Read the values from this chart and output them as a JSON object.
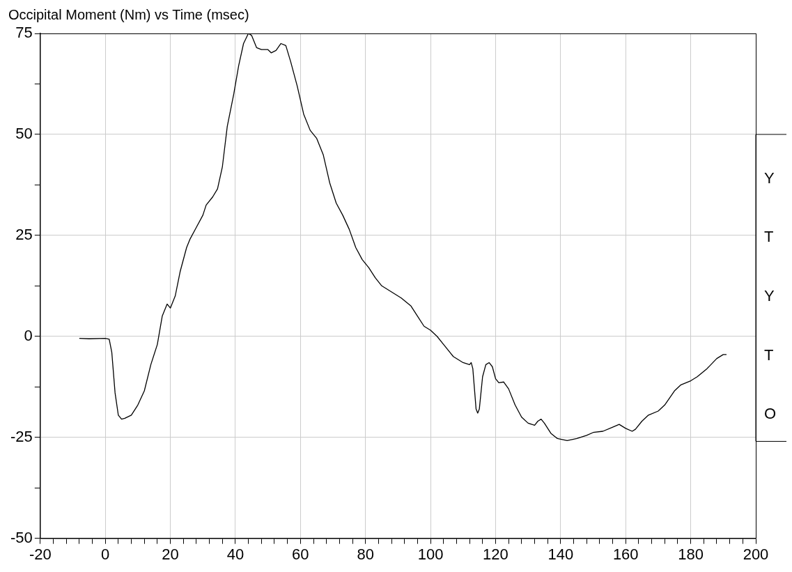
{
  "chart_data": {
    "type": "line",
    "title": "Occipital Moment (Nm) vs Time (msec)",
    "x": [
      -8,
      -5,
      0,
      1.2,
      2,
      3,
      4,
      5,
      6,
      8,
      10,
      12,
      14,
      16,
      17.5,
      19,
      20,
      21.5,
      23,
      25,
      26,
      28,
      30,
      31,
      33,
      34.5,
      36,
      37.5,
      39.5,
      41,
      42.5,
      44,
      45,
      46.5,
      48,
      50,
      51,
      52.5,
      54,
      55.5,
      57,
      59,
      61,
      63,
      65,
      67,
      69,
      71,
      73,
      75,
      77,
      79,
      81,
      83,
      85,
      88,
      91,
      94,
      96,
      98,
      100,
      102,
      104,
      107,
      110,
      112,
      112.5,
      113,
      113.5,
      114,
      114.5,
      115,
      116,
      117,
      118,
      119,
      120,
      121,
      122.5,
      124,
      126,
      128,
      130,
      132,
      133,
      134,
      135,
      137,
      139,
      142,
      145,
      148,
      150,
      153,
      156,
      158,
      160,
      162,
      163,
      165,
      167,
      170,
      172,
      175,
      177,
      180,
      182,
      185,
      188,
      190,
      191
    ],
    "series": [
      {
        "color": "#000000",
        "values": [
          -0.5,
          -0.6,
          -0.5,
          -0.7,
          -4,
          -14,
          -19.5,
          -20.5,
          -20.3,
          -19.5,
          -17,
          -13.5,
          -7,
          -2,
          5,
          8,
          7,
          10,
          16,
          22,
          24,
          27,
          30,
          32.5,
          34.5,
          36.5,
          42,
          52,
          60,
          67,
          72.5,
          75,
          74.5,
          71.5,
          71,
          71,
          70.2,
          70.8,
          72.5,
          72,
          68,
          62,
          55,
          51,
          49,
          45,
          38,
          33,
          30,
          26.5,
          22,
          19,
          17,
          14.5,
          12.5,
          11,
          9.5,
          7.5,
          5,
          2.5,
          1.5,
          0,
          -2,
          -5,
          -6.5,
          -7,
          -6.5,
          -8,
          -13,
          -18,
          -19,
          -18,
          -10,
          -7,
          -6.5,
          -7.5,
          -10.5,
          -11.5,
          -11.3,
          -13,
          -17,
          -20,
          -21.5,
          -22,
          -21,
          -20.5,
          -21.5,
          -24,
          -25.3,
          -25.8,
          -25.3,
          -24.5,
          -23.8,
          -23.5,
          -22.5,
          -21.8,
          -22.8,
          -23.5,
          -23,
          -21,
          -19.5,
          -18.5,
          -17,
          -13.5,
          -12,
          -11,
          -10,
          -8,
          -5.5,
          -4.5,
          -4.5
        ]
      }
    ],
    "xlim": [
      -20,
      200
    ],
    "xticks": [
      -20,
      {
        "value": -16,
        "label": null
      },
      {
        "value": -12,
        "label": null
      },
      {
        "value": -8,
        "label": null
      },
      {
        "value": -4,
        "label": null
      },
      0,
      {
        "value": 4,
        "label": null
      },
      {
        "value": 8,
        "label": null
      },
      {
        "value": 12,
        "label": null
      },
      {
        "value": 16,
        "label": null
      },
      20,
      {
        "value": 24,
        "label": null
      },
      {
        "value": 28,
        "label": null
      },
      {
        "value": 32,
        "label": null
      },
      {
        "value": 36,
        "label": null
      },
      40,
      {
        "value": 44,
        "label": null
      },
      {
        "value": 48,
        "label": null
      },
      {
        "value": 52,
        "label": null
      },
      {
        "value": 56,
        "label": null
      },
      60,
      {
        "value": 64,
        "label": null
      },
      {
        "value": 68,
        "label": null
      },
      {
        "value": 72,
        "label": null
      },
      {
        "value": 76,
        "label": null
      },
      80,
      {
        "value": 84,
        "label": null
      },
      {
        "value": 88,
        "label": null
      },
      {
        "value": 92,
        "label": null
      },
      {
        "value": 96,
        "label": null
      },
      100,
      {
        "value": 104,
        "label": null
      },
      {
        "value": 108,
        "label": null
      },
      {
        "value": 112,
        "label": null
      },
      {
        "value": 116,
        "label": null
      },
      120,
      {
        "value": 124,
        "label": null
      },
      {
        "value": 128,
        "label": null
      },
      {
        "value": 132,
        "label": null
      },
      {
        "value": 136,
        "label": null
      },
      140,
      {
        "value": 144,
        "label": null
      },
      {
        "value": 148,
        "label": null
      },
      {
        "value": 152,
        "label": null
      },
      {
        "value": 156,
        "label": null
      },
      160,
      {
        "value": 164,
        "label": null
      },
      {
        "value": 168,
        "label": null
      },
      {
        "value": 172,
        "label": null
      },
      {
        "value": 176,
        "label": null
      },
      180,
      {
        "value": 184,
        "label": null
      },
      {
        "value": 188,
        "label": null
      },
      {
        "value": 192,
        "label": null
      },
      {
        "value": 196,
        "label": null
      },
      200
    ],
    "ylim": [
      -50,
      75
    ],
    "yticks": [
      -50,
      {
        "value": -37.5,
        "label": null
      },
      -25,
      {
        "value": -12.5,
        "label": null
      },
      0,
      {
        "value": 12.5,
        "label": null
      },
      25,
      {
        "value": 37.5,
        "label": null
      },
      50,
      {
        "value": 62.5,
        "label": null
      },
      75
    ],
    "grid": true,
    "line_style": "solid",
    "annotations": [
      "Y",
      "T",
      "Y",
      "T",
      "O"
    ]
  }
}
